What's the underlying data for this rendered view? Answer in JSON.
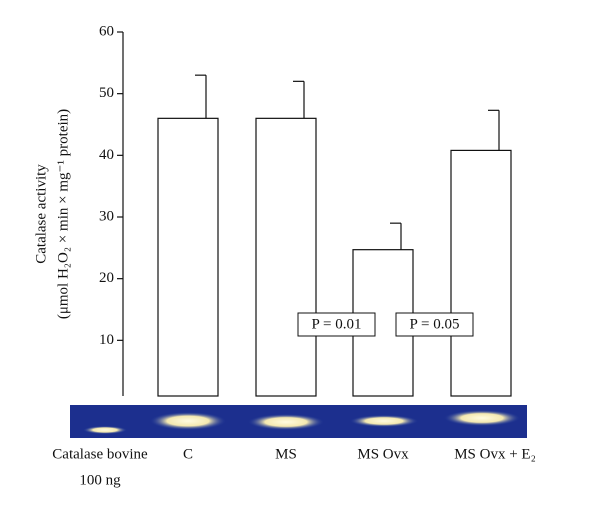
{
  "chart_data": {
    "type": "bar",
    "y_label": [
      "Catalase activity",
      "(μmol H₂O₂ × min × mg⁻¹ protein)"
    ],
    "categories": [
      "C",
      "MS",
      "MS Ovx",
      "MS Ovx + E₂"
    ],
    "values": [
      46,
      46,
      24.7,
      40.8
    ],
    "errors": [
      7,
      6,
      4.3,
      6.5
    ],
    "color": "#ffffff",
    "ylim": [
      0,
      60
    ],
    "yticks": [
      10,
      20,
      30,
      40,
      50,
      60
    ],
    "reference_label": [
      "Catalase bovine",
      "100 ng"
    ],
    "annotations": [
      "P = 0.01",
      "P = 0.05"
    ]
  }
}
